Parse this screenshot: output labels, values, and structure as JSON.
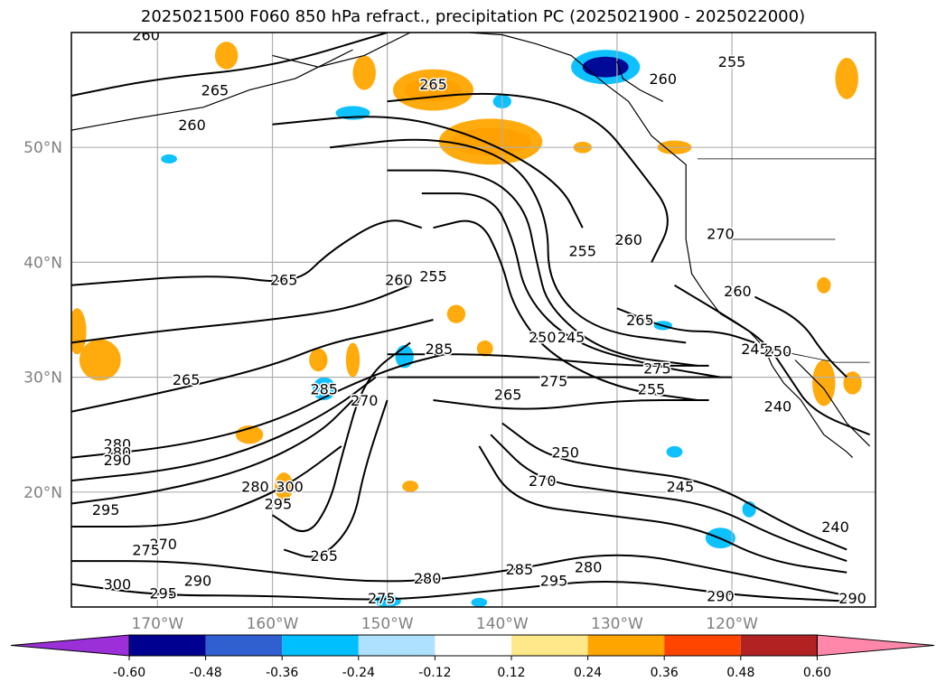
{
  "title": "2025021500 F060 850 hPa refract., precipitation PC (2025021900 - 2025022000)",
  "lat_labels": [
    {
      "label": "50°N",
      "lat": 50
    },
    {
      "label": "40°N",
      "lat": 40
    },
    {
      "label": "30°N",
      "lat": 30
    },
    {
      "label": "20°N",
      "lat": 20
    }
  ],
  "lon_labels": [
    {
      "label": "170°W",
      "lon": -170
    },
    {
      "label": "160°W",
      "lon": -160
    },
    {
      "label": "150°W",
      "lon": -150
    },
    {
      "label": "140°W",
      "lon": -140
    },
    {
      "label": "130°W",
      "lon": -130
    },
    {
      "label": "120°W",
      "lon": -120
    }
  ],
  "extent": {
    "lon_min": -177.5,
    "lon_max": -107.5,
    "lat_min": 10,
    "lat_max": 60
  },
  "colorbar": {
    "ticks": [
      "-0.60",
      "-0.48",
      "-0.36",
      "-0.24",
      "-0.12",
      "0.12",
      "0.24",
      "0.36",
      "0.48",
      "0.60"
    ],
    "colors": [
      "#9b30d8",
      "#000090",
      "#3060d0",
      "#00bfff",
      "#aee0ff",
      "#ffffff",
      "#ffe88a",
      "#ffa500",
      "#ff4500",
      "#b22222",
      "#ff88aa"
    ]
  },
  "contour_labels": [
    {
      "text": "260",
      "lon": -171,
      "lat": 59.8
    },
    {
      "text": "265",
      "lon": -165,
      "lat": 55
    },
    {
      "text": "265",
      "lon": -146,
      "lat": 55.5
    },
    {
      "text": "260",
      "lon": -167,
      "lat": 52
    },
    {
      "text": "260",
      "lon": -126,
      "lat": 56
    },
    {
      "text": "255",
      "lon": -120,
      "lat": 57.5
    },
    {
      "text": "260",
      "lon": -129,
      "lat": 42
    },
    {
      "text": "255",
      "lon": -133,
      "lat": 41
    },
    {
      "text": "270",
      "lon": -121,
      "lat": 42.5
    },
    {
      "text": "265",
      "lon": -159,
      "lat": 38.5
    },
    {
      "text": "260",
      "lon": -149,
      "lat": 38.5
    },
    {
      "text": "255",
      "lon": -146,
      "lat": 38.8
    },
    {
      "text": "265",
      "lon": -128,
      "lat": 35
    },
    {
      "text": "260",
      "lon": -119.5,
      "lat": 37.5
    },
    {
      "text": "250",
      "lon": -136.5,
      "lat": 33.5
    },
    {
      "text": "245",
      "lon": -134,
      "lat": 33.5
    },
    {
      "text": "285",
      "lon": -145.5,
      "lat": 32.5
    },
    {
      "text": "245",
      "lon": -118,
      "lat": 32.5
    },
    {
      "text": "250",
      "lon": -116,
      "lat": 32.3
    },
    {
      "text": "275",
      "lon": -126.5,
      "lat": 30.8
    },
    {
      "text": "255",
      "lon": -127,
      "lat": 29
    },
    {
      "text": "275",
      "lon": -135.5,
      "lat": 29.7
    },
    {
      "text": "265",
      "lon": -167.5,
      "lat": 29.8
    },
    {
      "text": "285",
      "lon": -155.5,
      "lat": 29
    },
    {
      "text": "270",
      "lon": -152,
      "lat": 28
    },
    {
      "text": "265",
      "lon": -139.5,
      "lat": 28.5
    },
    {
      "text": "240",
      "lon": -116,
      "lat": 27.5
    },
    {
      "text": "280",
      "lon": -173.5,
      "lat": 24.2
    },
    {
      "text": "280",
      "lon": -173.5,
      "lat": 23.5
    },
    {
      "text": "290",
      "lon": -173.5,
      "lat": 22.8
    },
    {
      "text": "250",
      "lon": -134.5,
      "lat": 23.5
    },
    {
      "text": "270",
      "lon": -136.5,
      "lat": 21
    },
    {
      "text": "245",
      "lon": -124.5,
      "lat": 20.5
    },
    {
      "text": "280",
      "lon": -161.5,
      "lat": 20.5
    },
    {
      "text": "300",
      "lon": -158.5,
      "lat": 20.5
    },
    {
      "text": "295",
      "lon": -159.5,
      "lat": 19
    },
    {
      "text": "295",
      "lon": -174.5,
      "lat": 18.5
    },
    {
      "text": "270",
      "lon": -169.5,
      "lat": 15.5
    },
    {
      "text": "275",
      "lon": -171,
      "lat": 15
    },
    {
      "text": "265",
      "lon": -155.5,
      "lat": 14.5
    },
    {
      "text": "240",
      "lon": -111,
      "lat": 17
    },
    {
      "text": "285",
      "lon": -138.5,
      "lat": 13.3
    },
    {
      "text": "280",
      "lon": -132.5,
      "lat": 13.5
    },
    {
      "text": "295",
      "lon": -135.5,
      "lat": 12.3
    },
    {
      "text": "280",
      "lon": -146.5,
      "lat": 12.5
    },
    {
      "text": "290",
      "lon": -166.5,
      "lat": 12.3
    },
    {
      "text": "295",
      "lon": -169.5,
      "lat": 11.2
    },
    {
      "text": "300",
      "lon": -173.5,
      "lat": 12
    },
    {
      "text": "275",
      "lon": -150.5,
      "lat": 10.8
    },
    {
      "text": "290",
      "lon": -121,
      "lat": 11
    },
    {
      "text": "290",
      "lon": -109.5,
      "lat": 10.8
    }
  ],
  "contour_lines": [
    [
      [
        -150,
        60
      ],
      [
        -160,
        57
      ],
      [
        -170,
        56
      ],
      [
        -177.5,
        54.5
      ]
    ],
    [
      [
        -150,
        54
      ],
      [
        -140,
        55
      ],
      [
        -132,
        53
      ],
      [
        -128,
        48
      ],
      [
        -125,
        44
      ],
      [
        -127,
        40
      ]
    ],
    [
      [
        -160,
        52
      ],
      [
        -150,
        53
      ],
      [
        -142,
        51
      ],
      [
        -135,
        47
      ],
      [
        -133,
        43
      ]
    ],
    [
      [
        -155,
        50
      ],
      [
        -146,
        51
      ],
      [
        -139,
        49
      ],
      [
        -136,
        44
      ],
      [
        -136,
        38
      ],
      [
        -132,
        34
      ],
      [
        -124,
        33
      ]
    ],
    [
      [
        -150,
        48
      ],
      [
        -142,
        48
      ],
      [
        -138,
        45
      ],
      [
        -137,
        40
      ],
      [
        -136,
        36
      ],
      [
        -131,
        32
      ],
      [
        -123,
        31
      ]
    ],
    [
      [
        -147,
        46
      ],
      [
        -141,
        46
      ],
      [
        -139,
        42
      ],
      [
        -138,
        37
      ],
      [
        -134,
        33
      ],
      [
        -127,
        31
      ],
      [
        -121,
        30
      ]
    ],
    [
      [
        -146,
        43
      ],
      [
        -142,
        44
      ],
      [
        -140,
        40
      ],
      [
        -139,
        36
      ],
      [
        -136,
        32
      ],
      [
        -130,
        29
      ],
      [
        -123,
        28
      ]
    ],
    [
      [
        -177.5,
        38
      ],
      [
        -165,
        39
      ],
      [
        -158,
        38
      ],
      [
        -155,
        41
      ],
      [
        -150,
        44
      ],
      [
        -147,
        43
      ]
    ],
    [
      [
        -177.5,
        33
      ],
      [
        -170,
        34
      ],
      [
        -160,
        35
      ],
      [
        -153,
        36
      ],
      [
        -148,
        38
      ]
    ],
    [
      [
        -177.5,
        27
      ],
      [
        -168,
        29
      ],
      [
        -160,
        31
      ],
      [
        -155,
        33
      ],
      [
        -150,
        34
      ],
      [
        -146,
        35
      ]
    ],
    [
      [
        -177.5,
        23
      ],
      [
        -168,
        24
      ],
      [
        -160,
        26
      ],
      [
        -154,
        29
      ],
      [
        -149,
        31
      ],
      [
        -145,
        32
      ]
    ],
    [
      [
        -177.5,
        21
      ],
      [
        -168,
        22
      ],
      [
        -161,
        24
      ],
      [
        -155,
        27
      ],
      [
        -151,
        30
      ]
    ],
    [
      [
        -177.5,
        19
      ],
      [
        -170,
        20
      ],
      [
        -162,
        22
      ],
      [
        -156,
        25
      ],
      [
        -153,
        28
      ]
    ],
    [
      [
        -177.5,
        17
      ],
      [
        -168,
        17
      ],
      [
        -162,
        19
      ],
      [
        -158,
        21
      ],
      [
        -154,
        24
      ]
    ],
    [
      [
        -160,
        18
      ],
      [
        -157,
        16
      ],
      [
        -155,
        19
      ],
      [
        -154,
        23
      ],
      [
        -152,
        30
      ],
      [
        -148,
        33
      ]
    ],
    [
      [
        -159,
        15
      ],
      [
        -156,
        14
      ],
      [
        -153,
        17
      ],
      [
        -152,
        22
      ],
      [
        -150,
        28
      ]
    ],
    [
      [
        -150,
        32
      ],
      [
        -140,
        32
      ],
      [
        -130,
        31
      ],
      [
        -122,
        31
      ]
    ],
    [
      [
        -150,
        30
      ],
      [
        -140,
        30
      ],
      [
        -130,
        30
      ],
      [
        -120,
        30
      ]
    ],
    [
      [
        -146,
        28
      ],
      [
        -138,
        27
      ],
      [
        -130,
        28
      ],
      [
        -122,
        28
      ]
    ],
    [
      [
        -140,
        26
      ],
      [
        -136,
        23
      ],
      [
        -130,
        22
      ],
      [
        -122,
        21
      ],
      [
        -115,
        17
      ],
      [
        -110,
        15
      ]
    ],
    [
      [
        -141,
        25
      ],
      [
        -137,
        21
      ],
      [
        -130,
        20
      ],
      [
        -122,
        19
      ],
      [
        -116,
        16
      ],
      [
        -110,
        14
      ]
    ],
    [
      [
        -142,
        24
      ],
      [
        -139,
        19
      ],
      [
        -131,
        18
      ],
      [
        -123,
        17
      ],
      [
        -117,
        14
      ],
      [
        -110,
        13
      ]
    ],
    [
      [
        -177.5,
        14
      ],
      [
        -168,
        14
      ],
      [
        -160,
        13
      ],
      [
        -150,
        12
      ],
      [
        -140,
        13
      ],
      [
        -130,
        15
      ],
      [
        -120,
        13
      ],
      [
        -110,
        11
      ]
    ],
    [
      [
        -177.5,
        12
      ],
      [
        -170,
        11
      ],
      [
        -160,
        11
      ],
      [
        -150,
        10.5
      ],
      [
        -140,
        11.5
      ],
      [
        -130,
        12.5
      ],
      [
        -120,
        11
      ],
      [
        -110,
        10.5
      ]
    ],
    [
      [
        -125,
        38
      ],
      [
        -120,
        35
      ],
      [
        -117,
        33
      ],
      [
        -115,
        30
      ],
      [
        -113,
        27
      ],
      [
        -108,
        25
      ]
    ],
    [
      [
        -118,
        37
      ],
      [
        -114,
        35
      ],
      [
        -112,
        32
      ],
      [
        -110,
        30
      ]
    ],
    [
      [
        -130,
        36
      ],
      [
        -125,
        34
      ],
      [
        -121,
        34
      ],
      [
        -118,
        33
      ]
    ]
  ],
  "precip_blobs": [
    {
      "lon": -141,
      "lat": 50.5,
      "rx": 3.5,
      "ry": 1.2,
      "color": "#ff4500"
    },
    {
      "lon": -141,
      "lat": 50.5,
      "rx": 4.5,
      "ry": 2,
      "color": "#ffa500"
    },
    {
      "lon": -146,
      "lat": 55,
      "rx": 2.5,
      "ry": 1,
      "color": "#ff4500"
    },
    {
      "lon": -146,
      "lat": 55,
      "rx": 3.5,
      "ry": 1.8,
      "color": "#ffa500"
    },
    {
      "lon": -175,
      "lat": 31.5,
      "rx": 1.8,
      "ry": 1.8,
      "color": "#ffa500"
    },
    {
      "lon": -177,
      "lat": 34,
      "rx": 0.8,
      "ry": 2,
      "color": "#ffa500"
    },
    {
      "lon": -152,
      "lat": 56.5,
      "rx": 1,
      "ry": 1.5,
      "color": "#ffa500"
    },
    {
      "lon": -110,
      "lat": 56,
      "rx": 1,
      "ry": 1.8,
      "color": "#ffa500"
    },
    {
      "lon": -131,
      "lat": 57,
      "rx": 3,
      "ry": 1.5,
      "color": "#00bfff"
    },
    {
      "lon": -131,
      "lat": 57,
      "rx": 2,
      "ry": 0.9,
      "color": "#000090"
    },
    {
      "lon": -164,
      "lat": 58,
      "rx": 1,
      "ry": 1.2,
      "color": "#ffa500"
    },
    {
      "lon": -153,
      "lat": 53,
      "rx": 1.5,
      "ry": 0.6,
      "color": "#00bfff"
    },
    {
      "lon": -140,
      "lat": 54,
      "rx": 0.8,
      "ry": 0.6,
      "color": "#00bfff"
    },
    {
      "lon": -156,
      "lat": 31.5,
      "rx": 0.8,
      "ry": 1,
      "color": "#ffa500"
    },
    {
      "lon": -153,
      "lat": 31.5,
      "rx": 0.6,
      "ry": 1.5,
      "color": "#ffa500"
    },
    {
      "lon": -148.5,
      "lat": 31.8,
      "rx": 0.8,
      "ry": 1,
      "color": "#00bfff"
    },
    {
      "lon": -155.5,
      "lat": 29,
      "rx": 1,
      "ry": 1,
      "color": "#00bfff"
    },
    {
      "lon": -162,
      "lat": 25,
      "rx": 1.2,
      "ry": 0.8,
      "color": "#ffa500"
    },
    {
      "lon": -159,
      "lat": 20.5,
      "rx": 0.8,
      "ry": 1.2,
      "color": "#ffa500"
    },
    {
      "lon": -144,
      "lat": 35.5,
      "rx": 0.8,
      "ry": 0.8,
      "color": "#ffa500"
    },
    {
      "lon": -141.5,
      "lat": 32.5,
      "rx": 0.7,
      "ry": 0.7,
      "color": "#ffa500"
    },
    {
      "lon": -112,
      "lat": 29.5,
      "rx": 1,
      "ry": 2,
      "color": "#ffa500"
    },
    {
      "lon": -109.5,
      "lat": 29.5,
      "rx": 0.8,
      "ry": 1,
      "color": "#ffa500"
    },
    {
      "lon": -112,
      "lat": 38,
      "rx": 0.6,
      "ry": 0.7,
      "color": "#ffa500"
    },
    {
      "lon": -125,
      "lat": 50,
      "rx": 1.5,
      "ry": 0.6,
      "color": "#ffa500"
    },
    {
      "lon": -133,
      "lat": 50,
      "rx": 0.8,
      "ry": 0.5,
      "color": "#ffa500"
    },
    {
      "lon": -121,
      "lat": 16,
      "rx": 1.3,
      "ry": 0.9,
      "color": "#00bfff"
    },
    {
      "lon": -118.5,
      "lat": 18.5,
      "rx": 0.6,
      "ry": 0.7,
      "color": "#00bfff"
    },
    {
      "lon": -144,
      "lat": 31,
      "rx": 0,
      "ry": 0,
      "color": "#00bfff"
    },
    {
      "lon": -148,
      "lat": 20.5,
      "rx": 0.7,
      "ry": 0.5,
      "color": "#ffa500"
    },
    {
      "lon": -125,
      "lat": 23.5,
      "rx": 0.7,
      "ry": 0.5,
      "color": "#00bfff"
    },
    {
      "lon": -150,
      "lat": 10.5,
      "rx": 1.2,
      "ry": 0.5,
      "color": "#00bfff"
    },
    {
      "lon": -142,
      "lat": 10.4,
      "rx": 0.7,
      "ry": 0.4,
      "color": "#00bfff"
    },
    {
      "lon": -126,
      "lat": 34.5,
      "rx": 0.8,
      "ry": 0.4,
      "color": "#00bfff"
    },
    {
      "lon": -169,
      "lat": 49,
      "rx": 0.7,
      "ry": 0.4,
      "color": "#00bfff"
    }
  ],
  "coastlines": [
    [
      [
        -160,
        58
      ],
      [
        -156,
        57
      ],
      [
        -152,
        58
      ],
      [
        -148,
        60
      ],
      [
        -143,
        60
      ],
      [
        -140,
        59.8
      ],
      [
        -137,
        59
      ],
      [
        -134,
        58
      ],
      [
        -131,
        55.5
      ],
      [
        -129,
        54
      ],
      [
        -127,
        51
      ],
      [
        -124,
        48.5
      ],
      [
        -124,
        46
      ],
      [
        -124,
        42
      ],
      [
        -123.5,
        39
      ],
      [
        -122.5,
        37.5
      ],
      [
        -121,
        35.5
      ],
      [
        -118.5,
        34
      ],
      [
        -117.2,
        32.6
      ],
      [
        -116.5,
        31
      ],
      [
        -115.5,
        29.5
      ],
      [
        -114,
        28
      ],
      [
        -113,
        26.5
      ],
      [
        -112,
        25
      ],
      [
        -110,
        23.5
      ],
      [
        -109.5,
        23
      ]
    ],
    [
      [
        -114.5,
        31.5
      ],
      [
        -113,
        30
      ],
      [
        -112,
        29
      ],
      [
        -111,
        27.5
      ],
      [
        -110,
        26
      ],
      [
        -109,
        25
      ],
      [
        -108,
        24
      ]
    ],
    [
      [
        -177.5,
        51.5
      ],
      [
        -172,
        52.5
      ],
      [
        -166,
        53.5
      ],
      [
        -162,
        55
      ],
      [
        -158,
        56
      ],
      [
        -155,
        57.5
      ],
      [
        -153,
        58.5
      ]
    ],
    [
      [
        -130,
        57.5
      ],
      [
        -129.5,
        56
      ],
      [
        -128,
        55
      ],
      [
        -126,
        54
      ]
    ]
  ],
  "borders": [
    [
      [
        -123,
        49
      ],
      [
        -107.5,
        49
      ]
    ],
    [
      [
        -120,
        42
      ],
      [
        -111,
        42
      ]
    ],
    [
      [
        -117,
        32.5
      ],
      [
        -111,
        31.3
      ],
      [
        -108,
        31.3
      ]
    ]
  ]
}
